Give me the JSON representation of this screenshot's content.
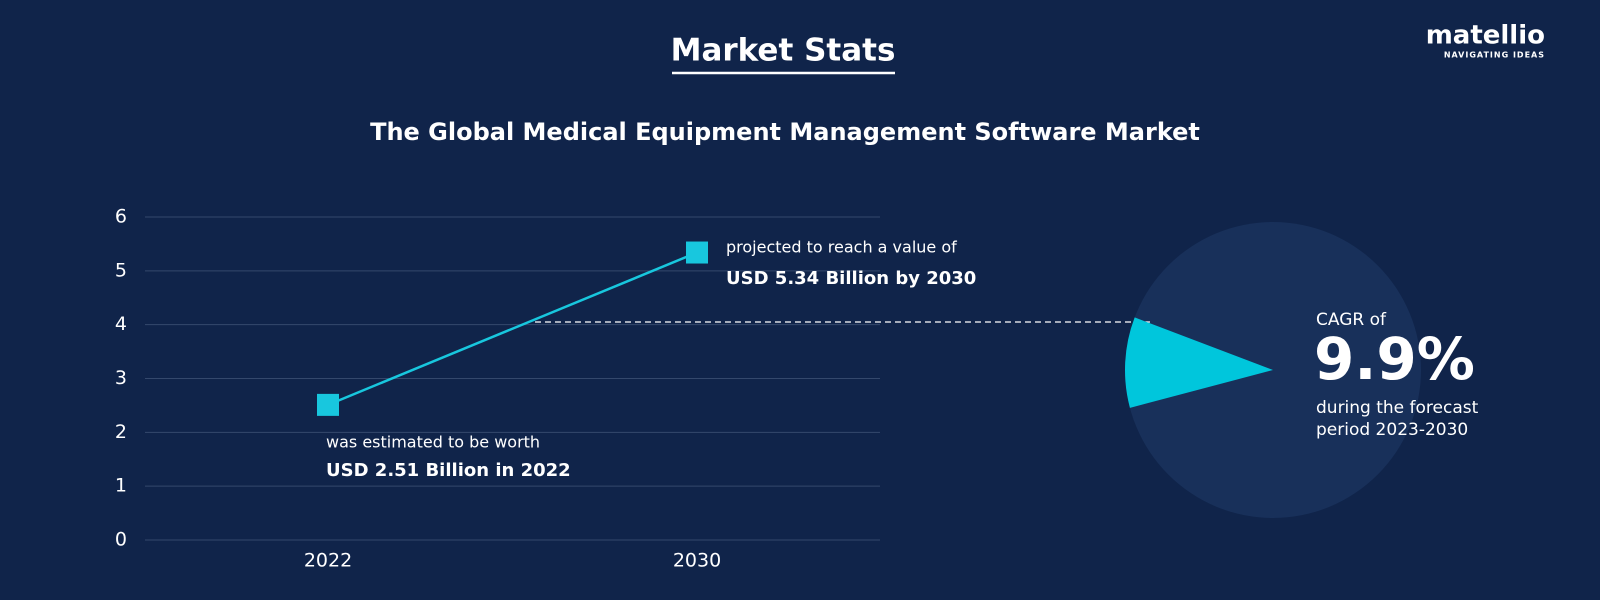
{
  "brand": {
    "name": "matellio",
    "tagline": "NAVIGATING IDEAS"
  },
  "heading": "Market Stats",
  "chart_data": [
    {
      "type": "line",
      "title": "The Global Medical Equipment Management Software Market",
      "categories": [
        "2022",
        "2030"
      ],
      "values": [
        2.51,
        5.34
      ],
      "color": "#18c7de",
      "ylim": [
        0,
        6
      ],
      "yticks": [
        0,
        1,
        2,
        3,
        4,
        5,
        6
      ],
      "grid": true,
      "annotations": [
        "was estimated to be worth",
        "USD 2.51 Billion in 2022",
        "projected to reach a value of",
        "USD 5.34 Billion by 2030"
      ]
    },
    {
      "type": "pie",
      "values": [
        9.9
      ],
      "value_labels": [
        "9.9%"
      ],
      "color": "#00c6dc",
      "annotations": [
        "CAGR of",
        "during the forecast",
        "period 2023-2030"
      ]
    }
  ]
}
